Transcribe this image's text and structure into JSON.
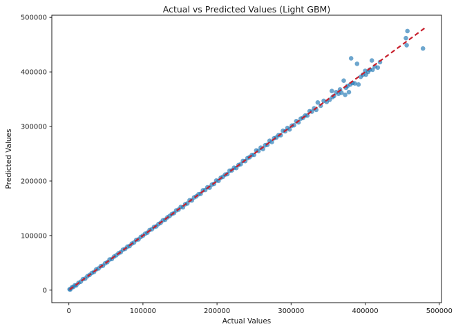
{
  "chart_data": {
    "type": "scatter",
    "title": "Actual vs Predicted Values (Light GBM)",
    "xlabel": "Actual Values",
    "ylabel": "Predicted Values",
    "xlim": [
      -23000,
      503000
    ],
    "ylim": [
      -23000,
      504000
    ],
    "x_tick_values": [
      0,
      100000,
      200000,
      300000,
      400000,
      500000
    ],
    "x_tick_labels": [
      "0",
      "100000",
      "200000",
      "300000",
      "400000",
      "500000"
    ],
    "y_tick_values": [
      0,
      100000,
      200000,
      300000,
      400000,
      500000
    ],
    "y_tick_labels": [
      "0",
      "100000",
      "200000",
      "300000",
      "400000",
      "500000"
    ],
    "grid": false,
    "legend": null,
    "background_color": "#ffffff",
    "spine_color": "#1a1a1a",
    "series": [
      {
        "name": "predictions-scatter",
        "type": "scatter",
        "color": "#1f77b4",
        "alpha": 0.65,
        "marker_radius": 3.3,
        "points": [
          [
            1000,
            1400
          ],
          [
            2000,
            1300
          ],
          [
            4000,
            5100
          ],
          [
            6000,
            5700
          ],
          [
            8000,
            8800
          ],
          [
            10000,
            8800
          ],
          [
            13000,
            13200
          ],
          [
            16000,
            15400
          ],
          [
            19000,
            20000
          ],
          [
            22000,
            21100
          ],
          [
            25000,
            25500
          ],
          [
            28000,
            27900
          ],
          [
            31000,
            31400
          ],
          [
            34000,
            33300
          ],
          [
            37000,
            38100
          ],
          [
            40000,
            39700
          ],
          [
            43000,
            43800
          ],
          [
            46000,
            44800
          ],
          [
            49000,
            49200
          ],
          [
            52000,
            51400
          ],
          [
            55000,
            56000
          ],
          [
            58000,
            57100
          ],
          [
            61000,
            61500
          ],
          [
            64000,
            63900
          ],
          [
            67000,
            67400
          ],
          [
            70000,
            69300
          ],
          [
            73000,
            74100
          ],
          [
            76000,
            75700
          ],
          [
            79000,
            79800
          ],
          [
            82000,
            80800
          ],
          [
            85000,
            85200
          ],
          [
            88000,
            87400
          ],
          [
            91000,
            92000
          ],
          [
            94000,
            93100
          ],
          [
            97000,
            97500
          ],
          [
            100000,
            99900
          ],
          [
            103000,
            103400
          ],
          [
            106000,
            105300
          ],
          [
            109000,
            110100
          ],
          [
            112000,
            111700
          ],
          [
            115000,
            115800
          ],
          [
            118000,
            116800
          ],
          [
            121000,
            121200
          ],
          [
            124000,
            123400
          ],
          [
            127000,
            128000
          ],
          [
            130000,
            129100
          ],
          [
            133000,
            133500
          ],
          [
            136000,
            135900
          ],
          [
            139000,
            139400
          ],
          [
            142000,
            141300
          ],
          [
            145000,
            146100
          ],
          [
            148000,
            147700
          ],
          [
            151000,
            152400
          ],
          [
            154000,
            151800
          ],
          [
            157000,
            157400
          ],
          [
            160000,
            158900
          ],
          [
            163000,
            164800
          ],
          [
            166000,
            164400
          ],
          [
            169000,
            169900
          ],
          [
            172000,
            171800
          ],
          [
            175000,
            175700
          ],
          [
            178000,
            176700
          ],
          [
            181000,
            183000
          ],
          [
            184000,
            183500
          ],
          [
            187000,
            188400
          ],
          [
            190000,
            187800
          ],
          [
            193000,
            193400
          ],
          [
            196000,
            194900
          ],
          [
            199000,
            200800
          ],
          [
            202000,
            200400
          ],
          [
            205000,
            205900
          ],
          [
            208000,
            207800
          ],
          [
            211000,
            211700
          ],
          [
            214000,
            212700
          ],
          [
            217000,
            219000
          ],
          [
            220000,
            219500
          ],
          [
            223000,
            224400
          ],
          [
            226000,
            223800
          ],
          [
            229000,
            229400
          ],
          [
            232000,
            230900
          ],
          [
            235000,
            236800
          ],
          [
            238000,
            236400
          ],
          [
            241000,
            241900
          ],
          [
            244000,
            243800
          ],
          [
            247000,
            247700
          ],
          [
            250000,
            248000
          ],
          [
            253000,
            256100
          ],
          [
            256000,
            255200
          ],
          [
            259000,
            261200
          ],
          [
            262000,
            258600
          ],
          [
            265000,
            265600
          ],
          [
            268000,
            266300
          ],
          [
            271000,
            273800
          ],
          [
            274000,
            271500
          ],
          [
            277000,
            278400
          ],
          [
            280000,
            279700
          ],
          [
            283000,
            284100
          ],
          [
            286000,
            284000
          ],
          [
            289000,
            292100
          ],
          [
            292000,
            291200
          ],
          [
            295000,
            297200
          ],
          [
            298000,
            294600
          ],
          [
            301000,
            301600
          ],
          [
            304000,
            302300
          ],
          [
            307000,
            309800
          ],
          [
            310000,
            307500
          ],
          [
            313000,
            314400
          ],
          [
            316000,
            315700
          ],
          [
            319000,
            320100
          ],
          [
            322000,
            320000
          ],
          [
            325000,
            328100
          ],
          [
            328000,
            327200
          ],
          [
            331000,
            333200
          ],
          [
            334000,
            330600
          ],
          [
            336000,
            344000
          ],
          [
            340000,
            338000
          ],
          [
            344000,
            347000
          ],
          [
            348000,
            345000
          ],
          [
            352000,
            349000
          ],
          [
            355000,
            365000
          ],
          [
            356000,
            354000
          ],
          [
            358000,
            356000
          ],
          [
            361000,
            363000
          ],
          [
            364000,
            360000
          ],
          [
            366000,
            368000
          ],
          [
            368000,
            362000
          ],
          [
            371000,
            384000
          ],
          [
            373000,
            358000
          ],
          [
            374000,
            371000
          ],
          [
            376000,
            374000
          ],
          [
            378000,
            363000
          ],
          [
            380000,
            377000
          ],
          [
            381000,
            425000
          ],
          [
            383000,
            380000
          ],
          [
            386000,
            379000
          ],
          [
            389000,
            415000
          ],
          [
            391000,
            377000
          ],
          [
            394000,
            391000
          ],
          [
            397000,
            395000
          ],
          [
            400000,
            402000
          ],
          [
            401000,
            395000
          ],
          [
            404000,
            400000
          ],
          [
            406000,
            404000
          ],
          [
            409000,
            421000
          ],
          [
            410000,
            404000
          ],
          [
            413000,
            410000
          ],
          [
            417000,
            408000
          ],
          [
            420000,
            418000
          ],
          [
            455000,
            462000
          ],
          [
            456000,
            449000
          ],
          [
            457000,
            475000
          ],
          [
            478000,
            443000
          ]
        ]
      },
      {
        "name": "identity-line",
        "type": "line",
        "style": "dashed",
        "color": "#c8202d",
        "width": 2.2,
        "points": [
          [
            1000,
            1000
          ],
          [
            480000,
            480000
          ]
        ]
      }
    ]
  }
}
